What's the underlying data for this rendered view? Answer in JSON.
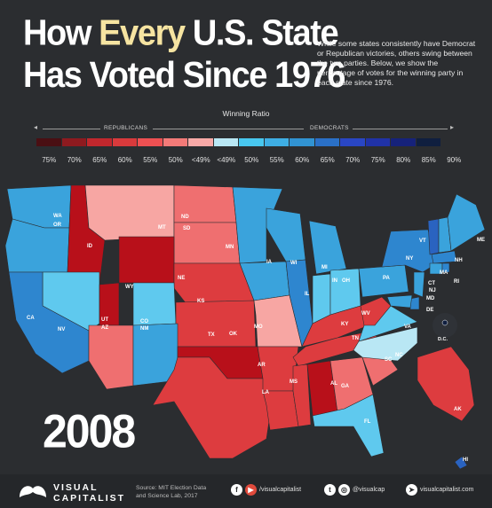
{
  "title_lines": {
    "l1a": "How ",
    "l1b": "Every",
    "l1c": " U.S. State",
    "l2": "Has Voted Since 1976"
  },
  "subtitle": "While some states consistently have Democrat or Republican victories, others swing between the two parties. Below, we show the percentage of votes for the winning party in each state since 1976.",
  "legend": {
    "title": "Winning Ratio",
    "republicans": "REPUBLICANS",
    "democrats": "DEMOCRATS",
    "colors": [
      "#4a0f13",
      "#8e1a1f",
      "#c1272d",
      "#d93a3c",
      "#ee5052",
      "#f47a78",
      "#f8a9a7",
      "#b9e7f4",
      "#48c7ef",
      "#3eaee4",
      "#3193d2",
      "#2a70c7",
      "#2946c4",
      "#2032a7",
      "#16227a",
      "#101f3f"
    ],
    "labels": [
      "75%",
      "70%",
      "65%",
      "60%",
      "55%",
      "50%",
      "<49%",
      "<49%",
      "50%",
      "55%",
      "60%",
      "65%",
      "70%",
      "75%",
      "80%",
      "85%",
      "90%"
    ]
  },
  "state_labels": [
    "WA",
    "OR",
    "ID",
    "MT",
    "ND",
    "SD",
    "WY",
    "NE",
    "NV",
    "CA",
    "UT",
    "CO",
    "KS",
    "AZ",
    "NM",
    "TX",
    "OK",
    "MN",
    "IA",
    "MO",
    "AR",
    "LA",
    "WI",
    "IL",
    "MI",
    "IN",
    "OH",
    "KY",
    "TN",
    "MS",
    "AL",
    "GA",
    "FL",
    "SC",
    "NC",
    "VA",
    "WV",
    "PA",
    "NY",
    "VT",
    "NH",
    "ME",
    "MA",
    "CT",
    "RI",
    "NJ",
    "DE",
    "MD",
    "D.C.",
    "AK",
    "HI"
  ],
  "year": "2008",
  "footer": {
    "brand_top": "VISUAL",
    "brand_bottom": "CAPITALIST",
    "source_l1": "Source: MIT Election Data",
    "source_l2": "and Science Lab, 2017",
    "facebook": "f",
    "youtube": "▶",
    "handle1": "/visualcapitalist",
    "twitter": "t",
    "instagram": "◎",
    "handle2": "@visualcap",
    "web": "➤",
    "site": "visualcapitalist.com"
  },
  "state_colors": {
    "rep_dark": "#b8101a",
    "rep": "#dd3c3f",
    "rep_light": "#ef6f70",
    "rep_pale": "#f7a6a3",
    "dem_pale": "#5fc9ee",
    "dem": "#3aa3dc",
    "dem_mid": "#2e86cf",
    "dem_dark": "#2a63c0"
  }
}
